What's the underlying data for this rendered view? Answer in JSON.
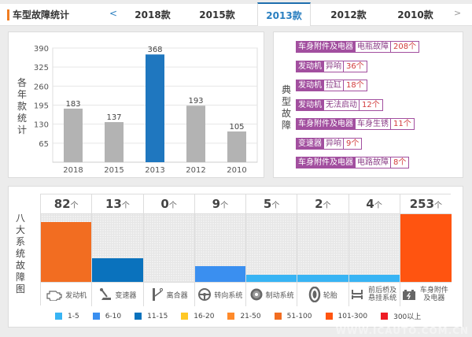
{
  "header": {
    "title": "车型故障统计",
    "prev_icon": "<",
    "next_icon": ">",
    "tabs": [
      {
        "label": "2018款",
        "active": false
      },
      {
        "label": "2015款",
        "active": false
      },
      {
        "label": "2013款",
        "active": true
      },
      {
        "label": "2012款",
        "active": false
      },
      {
        "label": "2010款",
        "active": false
      }
    ]
  },
  "chart_data": {
    "type": "bar",
    "title": "",
    "ylabel": "各年款统计",
    "xlabel": "",
    "categories": [
      "2018",
      "2015",
      "2013",
      "2012",
      "2010"
    ],
    "values": [
      183,
      137,
      368,
      193,
      105
    ],
    "yticks": [
      65,
      130,
      195,
      260,
      325,
      390
    ],
    "ylim": [
      0,
      390
    ],
    "highlight": "2013",
    "colors": {
      "default": "#b3b3b3",
      "highlight": "#1f77bf"
    },
    "grid": true
  },
  "typical_faults": {
    "label": "典型故障",
    "items": [
      {
        "category": "车身附件及电器",
        "type": "电瓶故障",
        "count": "208个"
      },
      {
        "category": "发动机",
        "type": "异响",
        "count": "36个"
      },
      {
        "category": "发动机",
        "type": "拉缸",
        "count": "18个"
      },
      {
        "category": "发动机",
        "type": "无法启动",
        "count": "12个"
      },
      {
        "category": "车身附件及电器",
        "type": "车身生锈",
        "count": "11个"
      },
      {
        "category": "变速器",
        "type": "异响",
        "count": "9个"
      },
      {
        "category": "车身附件及电器",
        "type": "电路故障",
        "count": "8个"
      }
    ]
  },
  "systems": {
    "label": "八大系统故障图",
    "unit": "个",
    "items": [
      {
        "name": "发动机",
        "count": 82,
        "icon": "engine-icon",
        "color": "#f26d21"
      },
      {
        "name": "变速器",
        "count": 13,
        "icon": "gear-shift-icon",
        "color": "#0a72bd"
      },
      {
        "name": "离合器",
        "count": 0,
        "icon": "clutch-pedal-icon",
        "color": "#f0f0f0"
      },
      {
        "name": "转向系统",
        "count": 9,
        "icon": "steering-wheel-icon",
        "color": "#3a8ff0"
      },
      {
        "name": "制动系统",
        "count": 5,
        "icon": "brake-disc-icon",
        "color": "#38b4f4"
      },
      {
        "name": "轮胎",
        "count": 2,
        "icon": "tire-icon",
        "color": "#38b4f4"
      },
      {
        "name": "前后桥及悬挂系统",
        "count": 4,
        "icon": "axle-icon",
        "color": "#38b4f4"
      },
      {
        "name": "车身附件及电器",
        "count": 253,
        "icon": "battery-icon",
        "color": "#ff5410"
      }
    ]
  },
  "legend": [
    {
      "label": "1-5",
      "color": "#38b4f4"
    },
    {
      "label": "6-10",
      "color": "#3a8ff0"
    },
    {
      "label": "11-15",
      "color": "#0a72bd"
    },
    {
      "label": "16-20",
      "color": "#ffc825"
    },
    {
      "label": "21-50",
      "color": "#ff8a2a"
    },
    {
      "label": "51-100",
      "color": "#f26d21"
    },
    {
      "label": "101-300",
      "color": "#ff5410"
    },
    {
      "label": "300以上",
      "color": "#ee1c25"
    }
  ],
  "watermark": "WWW.ICAUTO.COM.CN"
}
